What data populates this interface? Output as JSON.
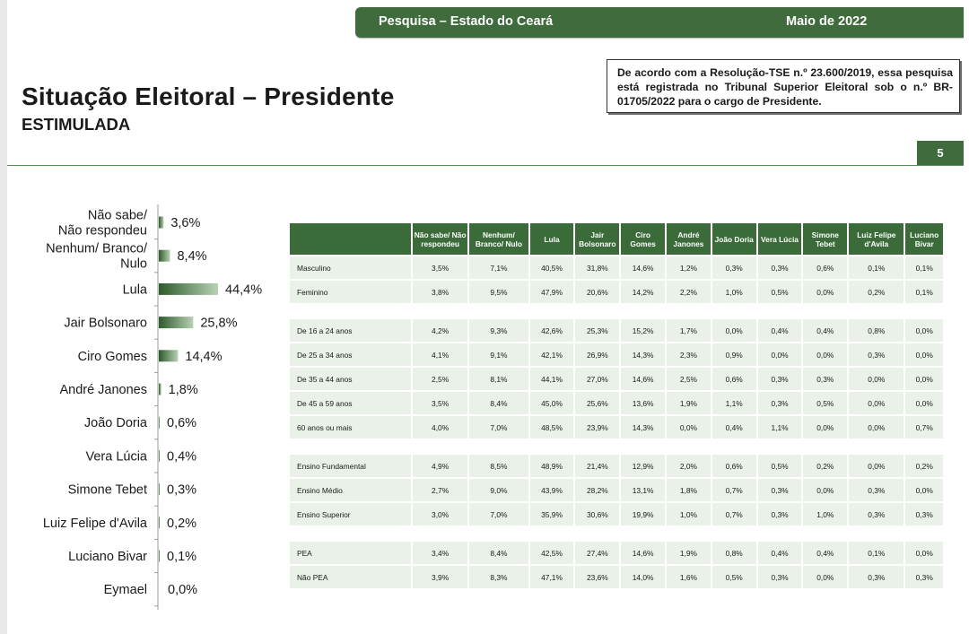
{
  "header": {
    "survey": "Pesquisa – Estado do Ceará",
    "date": "Maio de 2022"
  },
  "title": "Situação Eleitoral – Presidente",
  "subtitle": "ESTIMULADA",
  "notice": "De acordo com a Resolução-TSE n.º 23.600/2019, essa pesquisa está registrada no Tribunal Superior Eleitoral sob o n.º BR-01705/2022 para o cargo de Presidente.",
  "page_number": "5",
  "colors": {
    "brand_green": "#3f6b3d",
    "bar_dark": "#2d5a2b",
    "bar_light": "#b7d2b3",
    "cell_bg": "#e9f1e8"
  },
  "chart_data": {
    "type": "bar",
    "orientation": "horizontal",
    "categories": [
      "Não sabe/\nNão respondeu",
      "Nenhum/ Branco/\nNulo",
      "Lula",
      "Jair Bolsonaro",
      "Ciro Gomes",
      "André Janones",
      "João Doria",
      "Vera Lúcia",
      "Simone Tebet",
      "Luiz Felipe d'Avila",
      "Luciano Bivar",
      "Eymael"
    ],
    "values": [
      3.6,
      8.4,
      44.4,
      25.8,
      14.4,
      1.8,
      0.6,
      0.4,
      0.3,
      0.2,
      0.1,
      0.0
    ],
    "value_labels": [
      "3,6%",
      "8,4%",
      "44,4%",
      "25,8%",
      "14,4%",
      "1,8%",
      "0,6%",
      "0,4%",
      "0,3%",
      "0,2%",
      "0,1%",
      "0,0%"
    ],
    "unit": "%",
    "xlim": [
      0,
      44.4
    ],
    "grid": false,
    "legend": "none"
  },
  "table": {
    "columns": [
      "Não sabe/ Não respondeu",
      "Nenhum/ Branco/ Nulo",
      "Lula",
      "Jair Bolsonaro",
      "Ciro Gomes",
      "André Janones",
      "João Doria",
      "Vera Lúcia",
      "Simone Tebet",
      "Luiz Felipe d'Avila",
      "Luciano Bivar"
    ],
    "groups": [
      {
        "rows": [
          {
            "label": "Masculino",
            "values": [
              "3,5%",
              "7,1%",
              "40,5%",
              "31,8%",
              "14,6%",
              "1,2%",
              "0,3%",
              "0,3%",
              "0,6%",
              "0,1%",
              "0,1%"
            ]
          },
          {
            "label": "Feminino",
            "values": [
              "3,8%",
              "9,5%",
              "47,9%",
              "20,6%",
              "14,2%",
              "2,2%",
              "1,0%",
              "0,5%",
              "0,0%",
              "0,2%",
              "0,1%"
            ]
          }
        ]
      },
      {
        "rows": [
          {
            "label": "De 16 a 24 anos",
            "values": [
              "4,2%",
              "9,3%",
              "42,6%",
              "25,3%",
              "15,2%",
              "1,7%",
              "0,0%",
              "0,4%",
              "0,4%",
              "0,8%",
              "0,0%"
            ]
          },
          {
            "label": "De 25 a 34 anos",
            "values": [
              "4,1%",
              "9,1%",
              "42,1%",
              "26,9%",
              "14,3%",
              "2,3%",
              "0,9%",
              "0,0%",
              "0,0%",
              "0,3%",
              "0,0%"
            ]
          },
          {
            "label": "De 35 a 44 anos",
            "values": [
              "2,5%",
              "8,1%",
              "44,1%",
              "27,0%",
              "14,6%",
              "2,5%",
              "0,6%",
              "0,3%",
              "0,3%",
              "0,0%",
              "0,0%"
            ]
          },
          {
            "label": "De 45 a 59 anos",
            "values": [
              "3,5%",
              "8,4%",
              "45,0%",
              "25,6%",
              "13,6%",
              "1,9%",
              "1,1%",
              "0,3%",
              "0,5%",
              "0,0%",
              "0,0%"
            ]
          },
          {
            "label": "60 anos ou mais",
            "values": [
              "4,0%",
              "7,0%",
              "48,5%",
              "23,9%",
              "14,3%",
              "0,0%",
              "0,4%",
              "1,1%",
              "0,0%",
              "0,0%",
              "0,7%"
            ]
          }
        ]
      },
      {
        "rows": [
          {
            "label": "Ensino Fundamental",
            "values": [
              "4,9%",
              "8,5%",
              "48,9%",
              "21,4%",
              "12,9%",
              "2,0%",
              "0,6%",
              "0,5%",
              "0,2%",
              "0,0%",
              "0,2%"
            ]
          },
          {
            "label": "Ensino Médio",
            "values": [
              "2,7%",
              "9,0%",
              "43,9%",
              "28,2%",
              "13,1%",
              "1,8%",
              "0,7%",
              "0,3%",
              "0,0%",
              "0,3%",
              "0,0%"
            ]
          },
          {
            "label": "Ensino Superior",
            "values": [
              "3,0%",
              "7,0%",
              "35,9%",
              "30,6%",
              "19,9%",
              "1,0%",
              "0,7%",
              "0,3%",
              "1,0%",
              "0,3%",
              "0,3%"
            ]
          }
        ]
      },
      {
        "rows": [
          {
            "label": "PEA",
            "values": [
              "3,4%",
              "8,4%",
              "42,5%",
              "27,4%",
              "14,6%",
              "1,9%",
              "0,8%",
              "0,4%",
              "0,4%",
              "0,1%",
              "0,0%"
            ]
          },
          {
            "label": "Não PEA",
            "values": [
              "3,9%",
              "8,3%",
              "47,1%",
              "23,6%",
              "14,0%",
              "1,6%",
              "0,5%",
              "0,3%",
              "0,0%",
              "0,3%",
              "0,3%"
            ]
          }
        ]
      }
    ]
  }
}
